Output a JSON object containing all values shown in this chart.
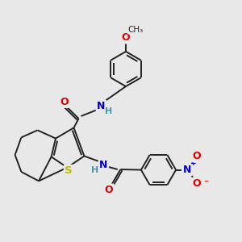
{
  "bg_color": "#e8e8e8",
  "bond_color": "#222222",
  "bond_width": 1.4,
  "atom_colors": {
    "O": "#dd0000",
    "N": "#0000cc",
    "S": "#bbbb00",
    "H": "#4499aa",
    "C": "#222222"
  },
  "fs": 8.5
}
